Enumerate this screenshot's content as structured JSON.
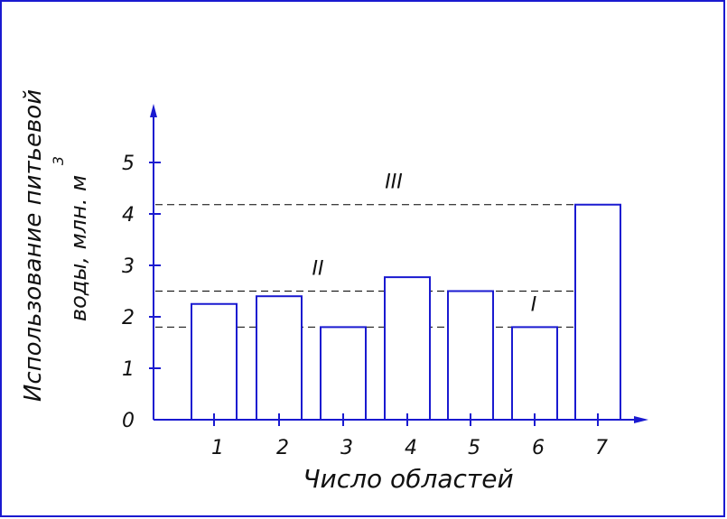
{
  "chart_data": {
    "type": "bar",
    "title": "",
    "xlabel": "Число областей",
    "ylabel_line1": "Использование питьевой",
    "ylabel_line2": "воды, млн. м",
    "ylabel_superscript": "3",
    "categories": [
      "1",
      "2",
      "3",
      "4",
      "5",
      "6",
      "7"
    ],
    "values": [
      2.25,
      2.4,
      1.8,
      2.77,
      2.5,
      1.8,
      4.18
    ],
    "ylim": [
      0,
      5.5
    ],
    "yticks": [
      "0",
      "1",
      "2",
      "3",
      "4",
      "5"
    ],
    "reference_lines": [
      {
        "label": "I",
        "value": 1.8
      },
      {
        "label": "II",
        "value": 2.5
      },
      {
        "label": "III",
        "value": 4.18
      }
    ],
    "grid": false,
    "legend": "none",
    "colors": {
      "frame": "#1a1ad0",
      "bars": "#1a1ad0",
      "reference": "#000000",
      "text": "#111111"
    }
  }
}
